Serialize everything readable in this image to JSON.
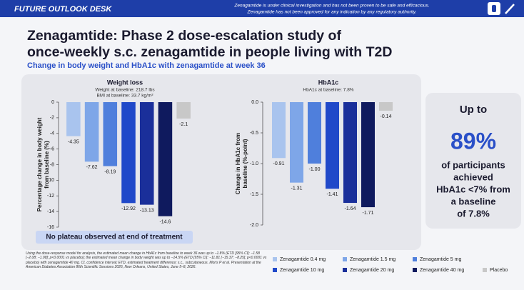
{
  "header": {
    "brand": "FUTURE OUTLOOK DESK",
    "disclaimer": [
      "Zenagamtide is under clinical investigation and has not been proven to be safe and efficacious.",
      "Zenagamtide has not been approved for any indication by any regulatory authority."
    ]
  },
  "title": [
    "Zenagamtide: Phase 2 dose-escalation study of",
    "once-weekly s.c. zenagamtide in people living with T2D"
  ],
  "subtitle": "Change in body weight and HbA1c with zenagamtide at week 36",
  "chart_data": [
    {
      "type": "bar",
      "title": "Weight loss",
      "subtitle": [
        "Weight at baseline: 218.7 lbs",
        "BMI at baseline: 33.7 kg/m²"
      ],
      "y_label": [
        "Percentage change in body weight",
        "from baseline (%)"
      ],
      "categories": [
        "Zenagamtide 0.4 mg",
        "Zenagamtide 1.5 mg",
        "Zenagamtide 5 mg",
        "Zenagamtide 10 mg",
        "Zenagamtide 20 mg",
        "Zenagamtide 40 mg",
        "Placebo"
      ],
      "colors": [
        "#a9c4ee",
        "#7ea6e8",
        "#4f7fdc",
        "#2049c9",
        "#1a2f9a",
        "#0f1a5e",
        "#c8c8c8"
      ],
      "values": [
        -4.35,
        -7.62,
        -8.19,
        -12.92,
        -13.13,
        -14.6,
        -2.1
      ],
      "ylim": [
        -16,
        0
      ],
      "yticks": [
        0,
        -2,
        -4,
        -6,
        -8,
        -10,
        -12,
        -14,
        -16
      ],
      "note": "No plateau observed at end of treatment"
    },
    {
      "type": "bar",
      "title": "HbA1c",
      "subtitle": [
        "HbA1c at baseline: 7.8%"
      ],
      "y_label": [
        "Change in HbA1c from",
        "baseline (%-point)"
      ],
      "values": [
        -0.91,
        -1.31,
        -1.0,
        -1.41,
        -1.64,
        -1.71,
        -0.14
      ],
      "value_labels": [
        "-0.91",
        "-1.31",
        "-1.00",
        "-1.41",
        "-1.64",
        "-1.71",
        "-0.14"
      ],
      "ylim": [
        -2.0,
        0.0
      ],
      "yticks": [
        {
          "value": 0.0,
          "label": "0.0"
        },
        {
          "value": -0.5,
          "label": "-0.5"
        },
        {
          "value": -1.0,
          "label": "-1.0"
        },
        {
          "value": -1.5,
          "label": "-1.5"
        },
        {
          "value": -2.0,
          "label": "-2.0"
        }
      ]
    }
  ],
  "callout": {
    "lines": [
      "Up to",
      "89%",
      "of participants",
      "achieved",
      "HbA1c <7% from",
      "a baseline",
      "of 7.8%"
    ]
  },
  "footnote": "Using the dose-response model for analysis, the estimated mean change in HbA1c from baseline to week 36 was up to −1.8% (ETD [95% CI]: −1.58 [−2.08; −1.08]; p<0.0001 vs placebo); the estimated mean change in body weight was up to −14.5% (ETD [95% CI]: −11.81 [−15.37; −8.25]; p<0.0001 vs placebo) with zenagamtide 40 mg. CI, confidence interval; ETD, estimated treatment difference; s.c., subcutaneous. Moris P et al. Presentation at the American Diabetes Association 86th Scientific Sessions 2026, New Orleans, United States, June 5–8, 2026."
}
